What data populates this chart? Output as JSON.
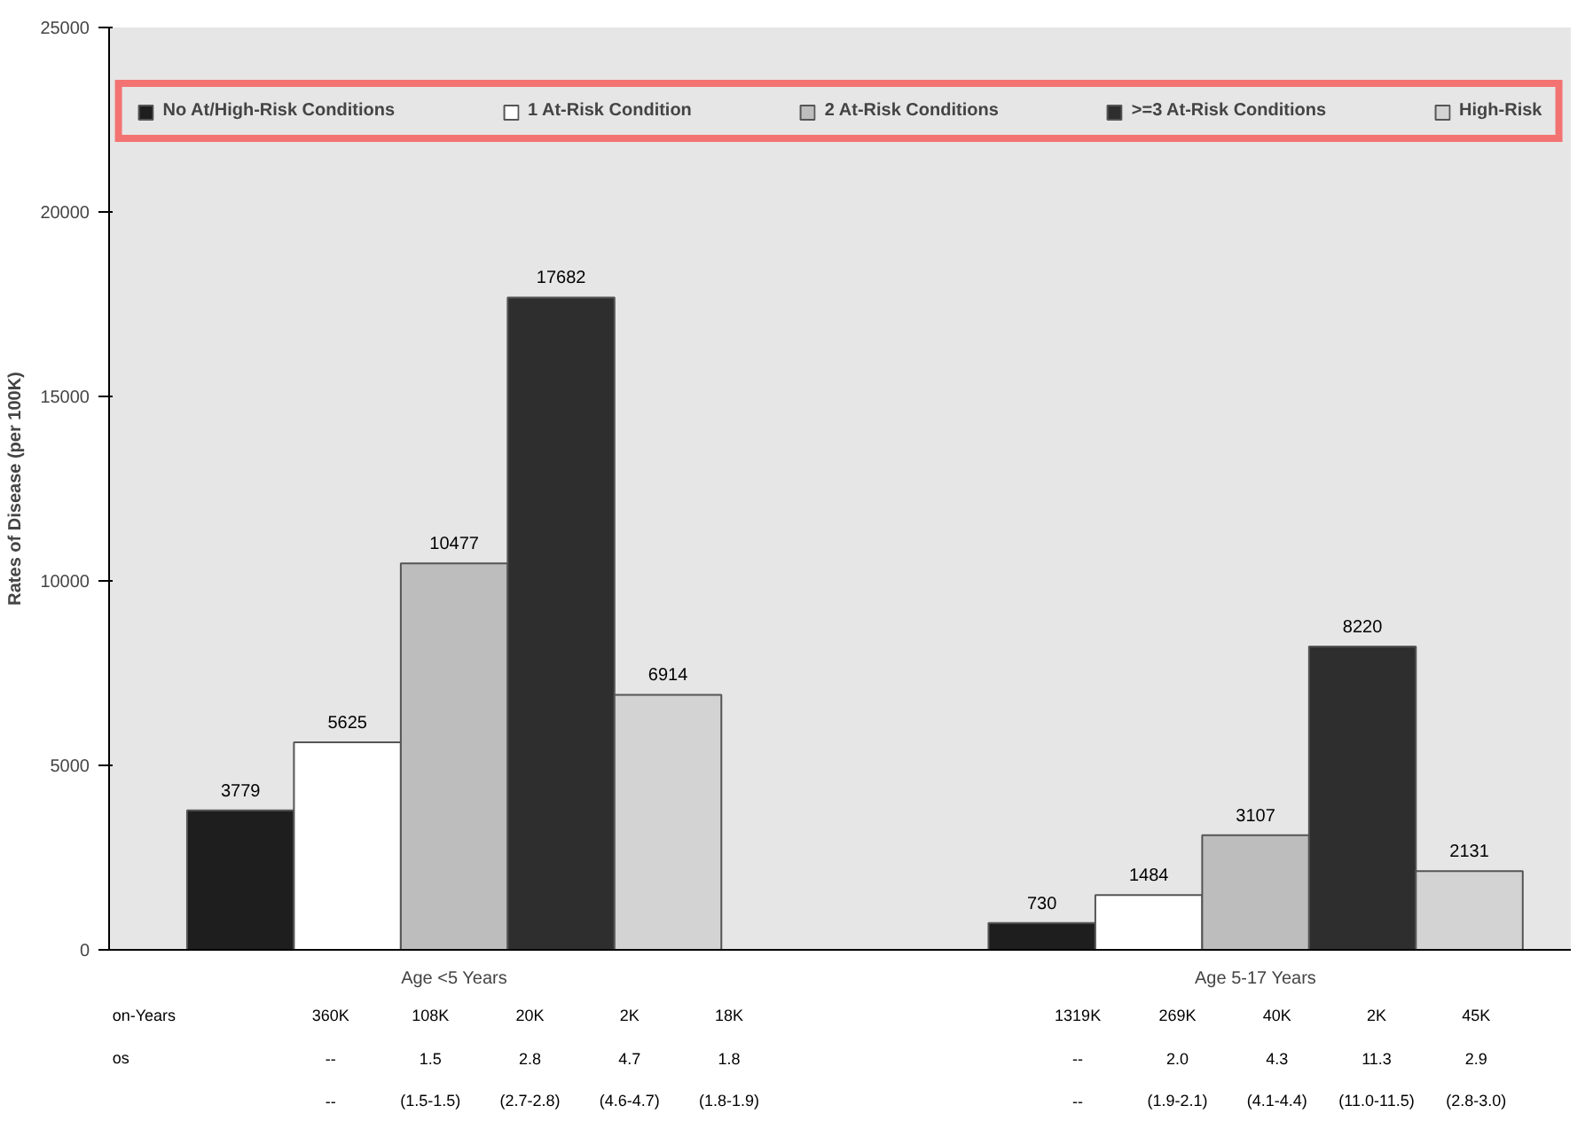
{
  "chart_data": {
    "type": "bar",
    "ylabel": "Rates of Disease (per 100K)",
    "categories": [
      "Age <5 Years",
      "Age 5-17 Years"
    ],
    "series": [
      {
        "name": "No At/High-Risk Conditions",
        "color": "#1e1e1e",
        "values": [
          3779,
          730
        ]
      },
      {
        "name": "1 At-Risk Condition",
        "color": "#ffffff",
        "values": [
          5625,
          1484
        ]
      },
      {
        "name": "2 At-Risk Conditions",
        "color": "#bdbdbd",
        "values": [
          10477,
          3107
        ]
      },
      {
        "name": ">=3 At-Risk Conditions",
        "color": "#2e2e2e",
        "values": [
          17682,
          8220
        ]
      },
      {
        "name": "High-Risk",
        "color": "#d3d3d3",
        "values": [
          6914,
          2131
        ]
      }
    ],
    "data_labels": true,
    "ylim": [
      0,
      25000
    ],
    "yticks": [
      0,
      5000,
      10000,
      15000,
      20000,
      25000
    ],
    "legend": "top",
    "annotations": [
      "on-Years",
      "360K",
      "108K",
      "20K",
      "2K",
      "18K",
      "1319K",
      "269K",
      "40K",
      "2K",
      "45K",
      "os",
      "--",
      "1.5",
      "2.8",
      "4.7",
      "1.8",
      "--",
      "2.0",
      "4.3",
      "11.3",
      "2.9",
      "--",
      "(1.5-1.5)",
      "(2.7-2.8)",
      "(4.6-4.7)",
      "(1.8-1.9)",
      "--",
      "(1.9-2.1)",
      "(4.1-4.4)",
      "(11.0-11.5)",
      "(2.8-3.0)"
    ]
  }
}
